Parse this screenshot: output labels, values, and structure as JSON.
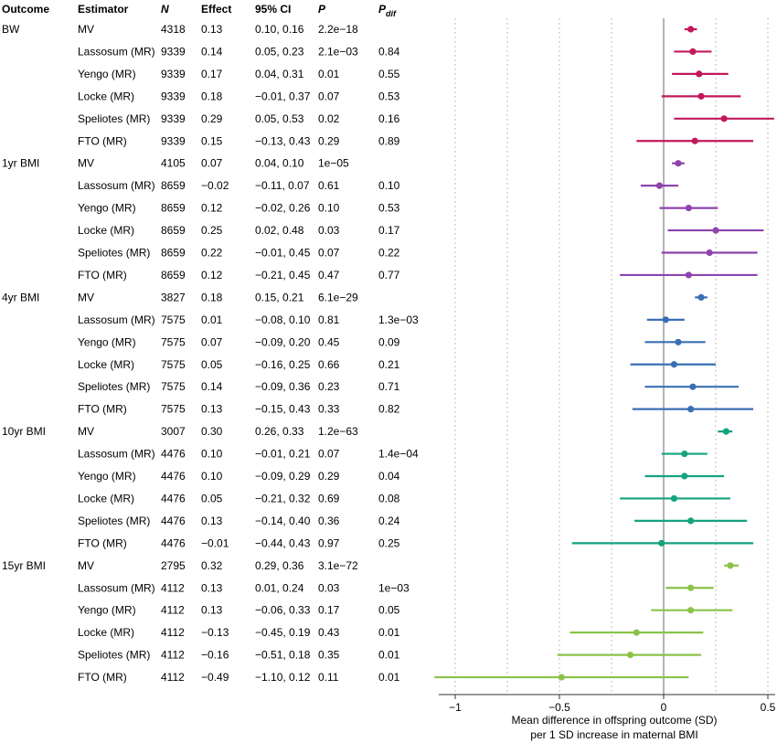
{
  "headers": {
    "outcome": "Outcome",
    "estimator": "Estimator",
    "n": "N",
    "effect": "Effect",
    "ci": "95% CI",
    "p": "P",
    "pdif_main": "P",
    "pdif_sub": "dif"
  },
  "x_axis": {
    "label_line1": "Mean difference in offspring outcome (SD)",
    "label_line2": "per 1 SD increase in maternal BMI",
    "ticks": [
      "−1",
      "−0.5",
      "0",
      "0.5"
    ]
  },
  "chart_data": {
    "type": "forest",
    "x_range": [
      -1.1,
      0.53
    ],
    "x_ticks": [
      -1,
      -0.5,
      0,
      0.5
    ],
    "gridlines": [
      -1,
      -0.75,
      -0.5,
      -0.25,
      0.25,
      0.5
    ],
    "groups": [
      {
        "outcome": "BW",
        "color": "#c2185b",
        "rows": [
          {
            "estimator": "MV",
            "n": "4318",
            "effect": "0.13",
            "ci": "0.10, 0.16",
            "p": "2.2e−18",
            "pdif": "",
            "est": 0.13,
            "lo": 0.1,
            "hi": 0.16
          },
          {
            "estimator": "Lassosum (MR)",
            "n": "9339",
            "effect": "0.14",
            "ci": "0.05, 0.23",
            "p": "2.1e−03",
            "pdif": "0.84",
            "est": 0.14,
            "lo": 0.05,
            "hi": 0.23
          },
          {
            "estimator": "Yengo (MR)",
            "n": "9339",
            "effect": "0.17",
            "ci": "0.04, 0.31",
            "p": "0.01",
            "pdif": "0.55",
            "est": 0.17,
            "lo": 0.04,
            "hi": 0.31
          },
          {
            "estimator": "Locke (MR)",
            "n": "9339",
            "effect": "0.18",
            "ci": "−0.01, 0.37",
            "p": "0.07",
            "pdif": "0.53",
            "est": 0.18,
            "lo": -0.01,
            "hi": 0.37
          },
          {
            "estimator": "Speliotes (MR)",
            "n": "9339",
            "effect": "0.29",
            "ci": "0.05, 0.53",
            "p": "0.02",
            "pdif": "0.16",
            "est": 0.29,
            "lo": 0.05,
            "hi": 0.53
          },
          {
            "estimator": "FTO (MR)",
            "n": "9339",
            "effect": "0.15",
            "ci": "−0.13, 0.43",
            "p": "0.29",
            "pdif": "0.89",
            "est": 0.15,
            "lo": -0.13,
            "hi": 0.43
          }
        ]
      },
      {
        "outcome": "1yr BMI",
        "color": "#8e44ad",
        "rows": [
          {
            "estimator": "MV",
            "n": "4105",
            "effect": "0.07",
            "ci": "0.04, 0.10",
            "p": "1e−05",
            "pdif": "",
            "est": 0.07,
            "lo": 0.04,
            "hi": 0.1
          },
          {
            "estimator": "Lassosum (MR)",
            "n": "8659",
            "effect": "−0.02",
            "ci": "−0.11, 0.07",
            "p": "0.61",
            "pdif": "0.10",
            "est": -0.02,
            "lo": -0.11,
            "hi": 0.07
          },
          {
            "estimator": "Yengo (MR)",
            "n": "8659",
            "effect": "0.12",
            "ci": "−0.02, 0.26",
            "p": "0.10",
            "pdif": "0.53",
            "est": 0.12,
            "lo": -0.02,
            "hi": 0.26
          },
          {
            "estimator": "Locke (MR)",
            "n": "8659",
            "effect": "0.25",
            "ci": "0.02, 0.48",
            "p": "0.03",
            "pdif": "0.17",
            "est": 0.25,
            "lo": 0.02,
            "hi": 0.48
          },
          {
            "estimator": "Speliotes (MR)",
            "n": "8659",
            "effect": "0.22",
            "ci": "−0.01, 0.45",
            "p": "0.07",
            "pdif": "0.22",
            "est": 0.22,
            "lo": -0.01,
            "hi": 0.45
          },
          {
            "estimator": "FTO (MR)",
            "n": "8659",
            "effect": "0.12",
            "ci": "−0.21, 0.45",
            "p": "0.47",
            "pdif": "0.77",
            "est": 0.12,
            "lo": -0.21,
            "hi": 0.45
          }
        ]
      },
      {
        "outcome": "4yr BMI",
        "color": "#3a6fb5",
        "rows": [
          {
            "estimator": "MV",
            "n": "3827",
            "effect": "0.18",
            "ci": "0.15, 0.21",
            "p": "6.1e−29",
            "pdif": "",
            "est": 0.18,
            "lo": 0.15,
            "hi": 0.21
          },
          {
            "estimator": "Lassosum (MR)",
            "n": "7575",
            "effect": "0.01",
            "ci": "−0.08, 0.10",
            "p": "0.81",
            "pdif": "1.3e−03",
            "est": 0.01,
            "lo": -0.08,
            "hi": 0.1
          },
          {
            "estimator": "Yengo (MR)",
            "n": "7575",
            "effect": "0.07",
            "ci": "−0.09, 0.20",
            "p": "0.45",
            "pdif": "0.09",
            "est": 0.07,
            "lo": -0.09,
            "hi": 0.2
          },
          {
            "estimator": "Locke (MR)",
            "n": "7575",
            "effect": "0.05",
            "ci": "−0.16, 0.25",
            "p": "0.66",
            "pdif": "0.21",
            "est": 0.05,
            "lo": -0.16,
            "hi": 0.25
          },
          {
            "estimator": "Speliotes (MR)",
            "n": "7575",
            "effect": "0.14",
            "ci": "−0.09, 0.36",
            "p": "0.23",
            "pdif": "0.71",
            "est": 0.14,
            "lo": -0.09,
            "hi": 0.36
          },
          {
            "estimator": "FTO (MR)",
            "n": "7575",
            "effect": "0.13",
            "ci": "−0.15, 0.43",
            "p": "0.33",
            "pdif": "0.82",
            "est": 0.13,
            "lo": -0.15,
            "hi": 0.43
          }
        ]
      },
      {
        "outcome": "10yr BMI",
        "color": "#14a37f",
        "rows": [
          {
            "estimator": "MV",
            "n": "3007",
            "effect": "0.30",
            "ci": "0.26, 0.33",
            "p": "1.2e−63",
            "pdif": "",
            "est": 0.3,
            "lo": 0.26,
            "hi": 0.33
          },
          {
            "estimator": "Lassosum (MR)",
            "n": "4476",
            "effect": "0.10",
            "ci": "−0.01, 0.21",
            "p": "0.07",
            "pdif": "1.4e−04",
            "est": 0.1,
            "lo": -0.01,
            "hi": 0.21
          },
          {
            "estimator": "Yengo (MR)",
            "n": "4476",
            "effect": "0.10",
            "ci": "−0.09, 0.29",
            "p": "0.29",
            "pdif": "0.04",
            "est": 0.1,
            "lo": -0.09,
            "hi": 0.29
          },
          {
            "estimator": "Locke (MR)",
            "n": "4476",
            "effect": "0.05",
            "ci": "−0.21, 0.32",
            "p": "0.69",
            "pdif": "0.08",
            "est": 0.05,
            "lo": -0.21,
            "hi": 0.32
          },
          {
            "estimator": "Speliotes (MR)",
            "n": "4476",
            "effect": "0.13",
            "ci": "−0.14, 0.40",
            "p": "0.36",
            "pdif": "0.24",
            "est": 0.13,
            "lo": -0.14,
            "hi": 0.4
          },
          {
            "estimator": "FTO (MR)",
            "n": "4476",
            "effect": "−0.01",
            "ci": "−0.44, 0.43",
            "p": "0.97",
            "pdif": "0.25",
            "est": -0.01,
            "lo": -0.44,
            "hi": 0.43
          }
        ]
      },
      {
        "outcome": "15yr BMI",
        "color": "#8bc34a",
        "rows": [
          {
            "estimator": "MV",
            "n": "2795",
            "effect": "0.32",
            "ci": "0.29, 0.36",
            "p": "3.1e−72",
            "pdif": "",
            "est": 0.32,
            "lo": 0.29,
            "hi": 0.36
          },
          {
            "estimator": "Lassosum (MR)",
            "n": "4112",
            "effect": "0.13",
            "ci": "0.01, 0.24",
            "p": "0.03",
            "pdif": "1e−03",
            "est": 0.13,
            "lo": 0.01,
            "hi": 0.24
          },
          {
            "estimator": "Yengo (MR)",
            "n": "4112",
            "effect": "0.13",
            "ci": "−0.06, 0.33",
            "p": "0.17",
            "pdif": "0.05",
            "est": 0.13,
            "lo": -0.06,
            "hi": 0.33
          },
          {
            "estimator": "Locke (MR)",
            "n": "4112",
            "effect": "−0.13",
            "ci": "−0.45, 0.19",
            "p": "0.43",
            "pdif": "0.01",
            "est": -0.13,
            "lo": -0.45,
            "hi": 0.19
          },
          {
            "estimator": "Speliotes (MR)",
            "n": "4112",
            "effect": "−0.16",
            "ci": "−0.51, 0.18",
            "p": "0.35",
            "pdif": "0.01",
            "est": -0.16,
            "lo": -0.51,
            "hi": 0.18
          },
          {
            "estimator": "FTO (MR)",
            "n": "4112",
            "effect": "−0.49",
            "ci": "−1.10, 0.12",
            "p": "0.11",
            "pdif": "0.01",
            "est": -0.49,
            "lo": -1.1,
            "hi": 0.12
          }
        ]
      }
    ]
  }
}
